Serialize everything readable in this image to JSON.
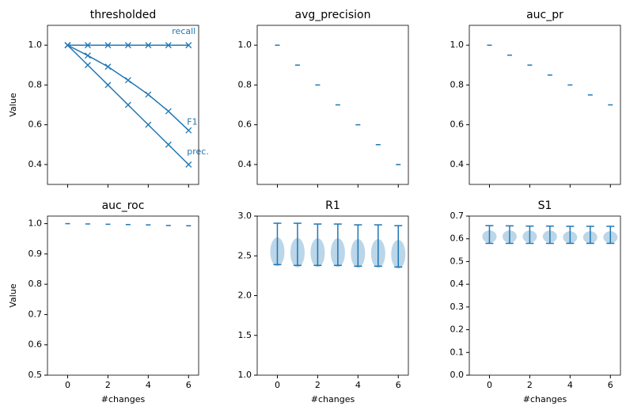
{
  "chart_data": [
    {
      "type": "line",
      "title": "thresholded",
      "ylabel": "Value",
      "x": [
        0,
        1,
        2,
        3,
        4,
        5,
        6
      ],
      "series": [
        {
          "name": "recall",
          "color": "#1f77b4",
          "values": [
            1.0,
            1.0,
            1.0,
            1.0,
            1.0,
            1.0,
            1.0
          ]
        },
        {
          "name": "F1",
          "color": "#1f77b4",
          "values": [
            1.0,
            0.948,
            0.892,
            0.824,
            0.752,
            0.668,
            0.572
          ]
        },
        {
          "name": "prec.",
          "color": "#1f77b4",
          "values": [
            1.0,
            0.9,
            0.8,
            0.7,
            0.6,
            0.5,
            0.4
          ]
        }
      ],
      "xlim": [
        -1,
        6.5
      ],
      "xticks": [
        0,
        2,
        4,
        6
      ],
      "ylim": [
        0.3,
        1.1
      ],
      "yticks": [
        0.4,
        0.6,
        0.8,
        {
          "value": 1.0,
          "label": "1.0"
        }
      ]
    },
    {
      "type": "dash",
      "title": "avg_precision",
      "color": "#1f77b4",
      "x": [
        0,
        1,
        2,
        3,
        4,
        5,
        6
      ],
      "values": [
        1.0,
        0.9,
        0.8,
        0.7,
        0.6,
        0.5,
        0.4
      ],
      "xlim": [
        -1,
        6.5
      ],
      "xticks": [
        0,
        2,
        4,
        6
      ],
      "ylim": [
        0.3,
        1.1
      ],
      "yticks": [
        0.4,
        0.6,
        0.8,
        {
          "value": 1.0,
          "label": "1.0"
        }
      ]
    },
    {
      "type": "dash",
      "title": "auc_pr",
      "color": "#1f77b4",
      "x": [
        0,
        1,
        2,
        3,
        4,
        5,
        6
      ],
      "values": [
        1.0,
        0.95,
        0.9,
        0.85,
        0.8,
        0.75,
        0.7
      ],
      "xlim": [
        -1,
        6.5
      ],
      "xticks": [
        0,
        2,
        4,
        6
      ],
      "ylim": [
        0.3,
        1.1
      ],
      "yticks": [
        0.4,
        0.6,
        0.8,
        {
          "value": 1.0,
          "label": "1.0"
        }
      ]
    },
    {
      "type": "dash",
      "title": "auc_roc",
      "ylabel": "Value",
      "xlabel": "#changes",
      "color": "#1f77b4",
      "x": [
        0,
        1,
        2,
        3,
        4,
        5,
        6
      ],
      "values": [
        1.0,
        0.999,
        0.998,
        0.997,
        0.996,
        0.994,
        0.993
      ],
      "xlim": [
        -1,
        6.5
      ],
      "xticks": [
        0,
        2,
        4,
        6
      ],
      "ylim": [
        0.5,
        1.025
      ],
      "yticks": [
        0.5,
        0.6,
        0.7,
        0.8,
        0.9,
        {
          "value": 1.0,
          "label": "1.0"
        }
      ]
    },
    {
      "type": "violin",
      "title": "R1",
      "xlabel": "#changes",
      "color": "#1f77b4",
      "x": [
        0,
        1,
        2,
        3,
        4,
        5,
        6
      ],
      "min": [
        2.39,
        2.38,
        2.38,
        2.38,
        2.37,
        2.37,
        2.36
      ],
      "max": [
        2.91,
        2.91,
        2.9,
        2.9,
        2.89,
        2.89,
        2.88
      ],
      "median": [
        2.55,
        2.54,
        2.54,
        2.54,
        2.53,
        2.53,
        2.52
      ],
      "xlim": [
        -1,
        6.5
      ],
      "xticks": [
        0,
        2,
        4,
        6
      ],
      "ylim": [
        1,
        3
      ],
      "yticks": [
        {
          "value": 1,
          "label": "1.0"
        },
        1.5,
        {
          "value": 2,
          "label": "2.0"
        },
        2.5,
        {
          "value": 3,
          "label": "3.0"
        }
      ]
    },
    {
      "type": "violin",
      "title": "S1",
      "xlabel": "#changes",
      "color": "#1f77b4",
      "x": [
        0,
        1,
        2,
        3,
        4,
        5,
        6
      ],
      "min": [
        0.58,
        0.58,
        0.58,
        0.58,
        0.58,
        0.58,
        0.58
      ],
      "max": [
        0.658,
        0.657,
        0.656,
        0.656,
        0.655,
        0.655,
        0.655
      ],
      "median": [
        0.61,
        0.61,
        0.61,
        0.61,
        0.607,
        0.607,
        0.607
      ],
      "xlim": [
        -1,
        6.5
      ],
      "xticks": [
        0,
        2,
        4,
        6
      ],
      "ylim": [
        0,
        0.7
      ],
      "yticks": [
        {
          "value": 0,
          "label": "0.0"
        },
        0.1,
        0.2,
        0.3,
        0.4,
        0.5,
        0.6,
        0.7
      ]
    }
  ]
}
